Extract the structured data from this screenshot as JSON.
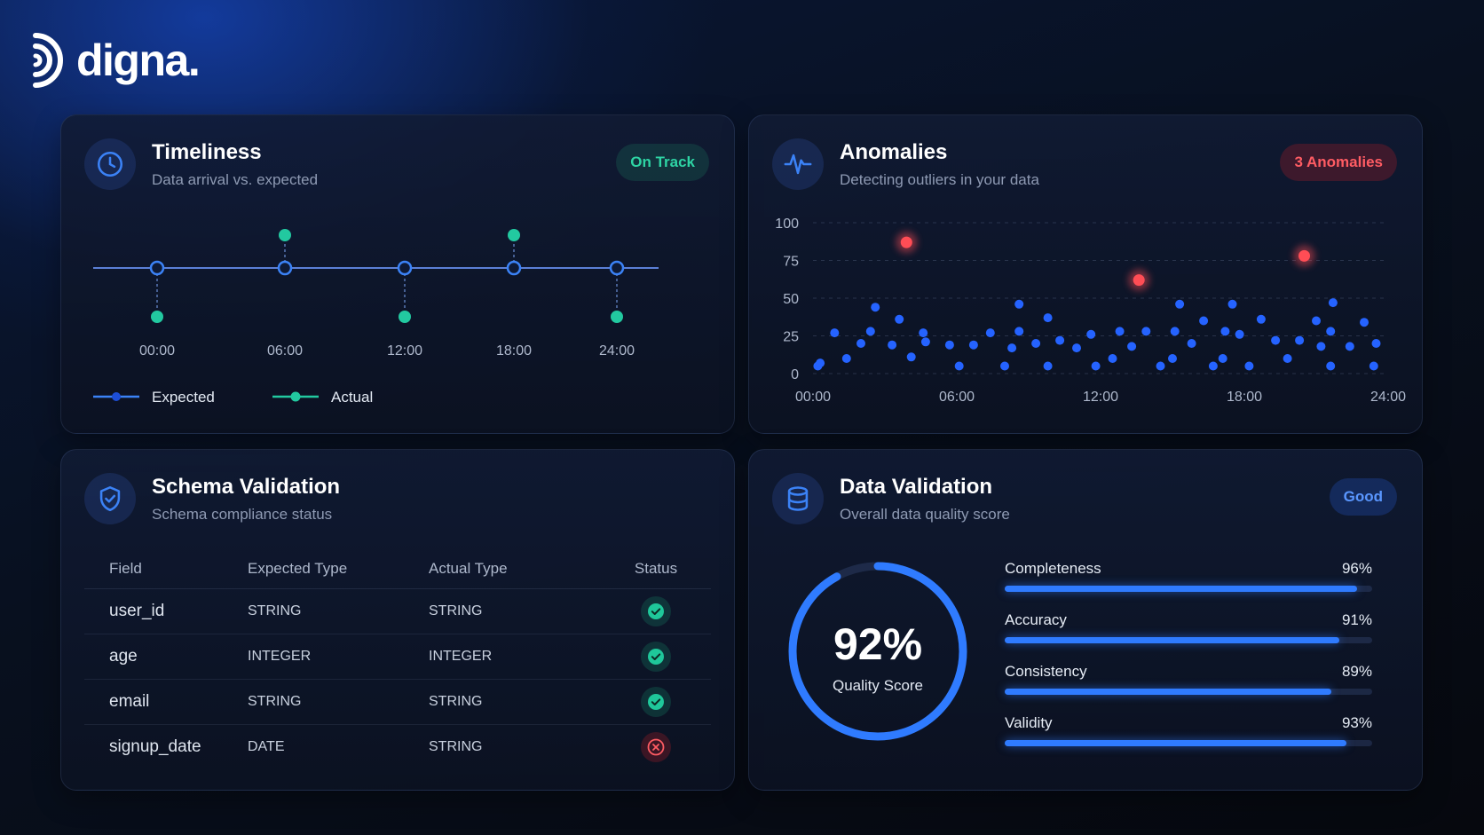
{
  "brand": {
    "name": "digna."
  },
  "timeliness": {
    "title": "Timeliness",
    "subtitle": "Data arrival vs. expected",
    "badge": "On Track",
    "times": [
      "00:00",
      "06:00",
      "12:00",
      "18:00",
      "24:00"
    ],
    "actual_offset": [
      "late",
      "early",
      "late",
      "early",
      "late"
    ],
    "legend": {
      "expected": "Expected",
      "actual": "Actual"
    },
    "colors": {
      "expected": "#3b82f6",
      "actual": "#22c9a0"
    }
  },
  "anomalies": {
    "title": "Anomalies",
    "subtitle": "Detecting outliers in your data",
    "badge": "3 Anomalies",
    "chart_data": {
      "type": "scatter",
      "x_unit": "hours",
      "xlim": [
        0,
        24
      ],
      "ylim": [
        0,
        100
      ],
      "x_ticks": [
        "00:00",
        "06:00",
        "12:00",
        "18:00",
        "24:00"
      ],
      "y_ticks": [
        "0",
        "25",
        "50",
        "75",
        "100"
      ],
      "grid": true,
      "series": [
        {
          "color": "#2563ff",
          "points": [
            [
              0.2,
              5
            ],
            [
              0.3,
              7
            ],
            [
              0.9,
              27
            ],
            [
              1.4,
              10
            ],
            [
              2.0,
              20
            ],
            [
              2.4,
              28
            ],
            [
              2.6,
              44
            ],
            [
              3.3,
              19
            ],
            [
              3.6,
              36
            ],
            [
              4.1,
              11
            ],
            [
              4.6,
              27
            ],
            [
              4.7,
              21
            ],
            [
              5.7,
              19
            ],
            [
              6.1,
              5
            ],
            [
              6.7,
              19
            ],
            [
              7.4,
              27
            ],
            [
              8.0,
              5
            ],
            [
              8.3,
              17
            ],
            [
              8.6,
              46
            ],
            [
              8.6,
              28
            ],
            [
              9.3,
              20
            ],
            [
              9.8,
              5
            ],
            [
              9.8,
              37
            ],
            [
              10.3,
              22
            ],
            [
              11.0,
              17
            ],
            [
              11.6,
              26
            ],
            [
              11.8,
              5
            ],
            [
              12.5,
              10
            ],
            [
              12.8,
              28
            ],
            [
              13.3,
              18
            ],
            [
              13.9,
              28
            ],
            [
              14.5,
              5
            ],
            [
              15.0,
              10
            ],
            [
              15.1,
              28
            ],
            [
              15.3,
              46
            ],
            [
              15.8,
              20
            ],
            [
              16.3,
              35
            ],
            [
              16.7,
              5
            ],
            [
              17.1,
              10
            ],
            [
              17.2,
              28
            ],
            [
              17.5,
              46
            ],
            [
              17.8,
              26
            ],
            [
              18.2,
              5
            ],
            [
              18.7,
              36
            ],
            [
              19.3,
              22
            ],
            [
              19.8,
              10
            ],
            [
              20.3,
              22
            ],
            [
              21.0,
              35
            ],
            [
              21.2,
              18
            ],
            [
              21.6,
              5
            ],
            [
              21.6,
              28
            ],
            [
              21.7,
              47
            ],
            [
              22.4,
              18
            ],
            [
              23.0,
              34
            ],
            [
              23.4,
              5
            ],
            [
              23.5,
              20
            ]
          ]
        },
        {
          "color": "#ff4d55",
          "points": [
            [
              3.9,
              87
            ],
            [
              13.6,
              62
            ],
            [
              20.5,
              78
            ]
          ]
        }
      ]
    }
  },
  "schema": {
    "title": "Schema Validation",
    "subtitle": "Schema compliance status",
    "headers": [
      "Field",
      "Expected Type",
      "Actual Type",
      "Status"
    ],
    "rows": [
      {
        "field": "user_id",
        "expected": "STRING",
        "actual": "STRING",
        "status": "ok"
      },
      {
        "field": "age",
        "expected": "INTEGER",
        "actual": "INTEGER",
        "status": "ok"
      },
      {
        "field": "email",
        "expected": "STRING",
        "actual": "STRING",
        "status": "ok"
      },
      {
        "field": "signup_date",
        "expected": "DATE",
        "actual": "STRING",
        "status": "error"
      }
    ]
  },
  "data_validation": {
    "title": "Data Validation",
    "subtitle": "Overall data quality score",
    "badge": "Good",
    "score": {
      "value": 92,
      "text": "92%",
      "label": "Quality Score"
    },
    "metrics": [
      {
        "name": "Completeness",
        "value": 96,
        "text": "96%"
      },
      {
        "name": "Accuracy",
        "value": 91,
        "text": "91%"
      },
      {
        "name": "Consistency",
        "value": 89,
        "text": "89%"
      },
      {
        "name": "Validity",
        "value": 93,
        "text": "93%"
      }
    ]
  }
}
